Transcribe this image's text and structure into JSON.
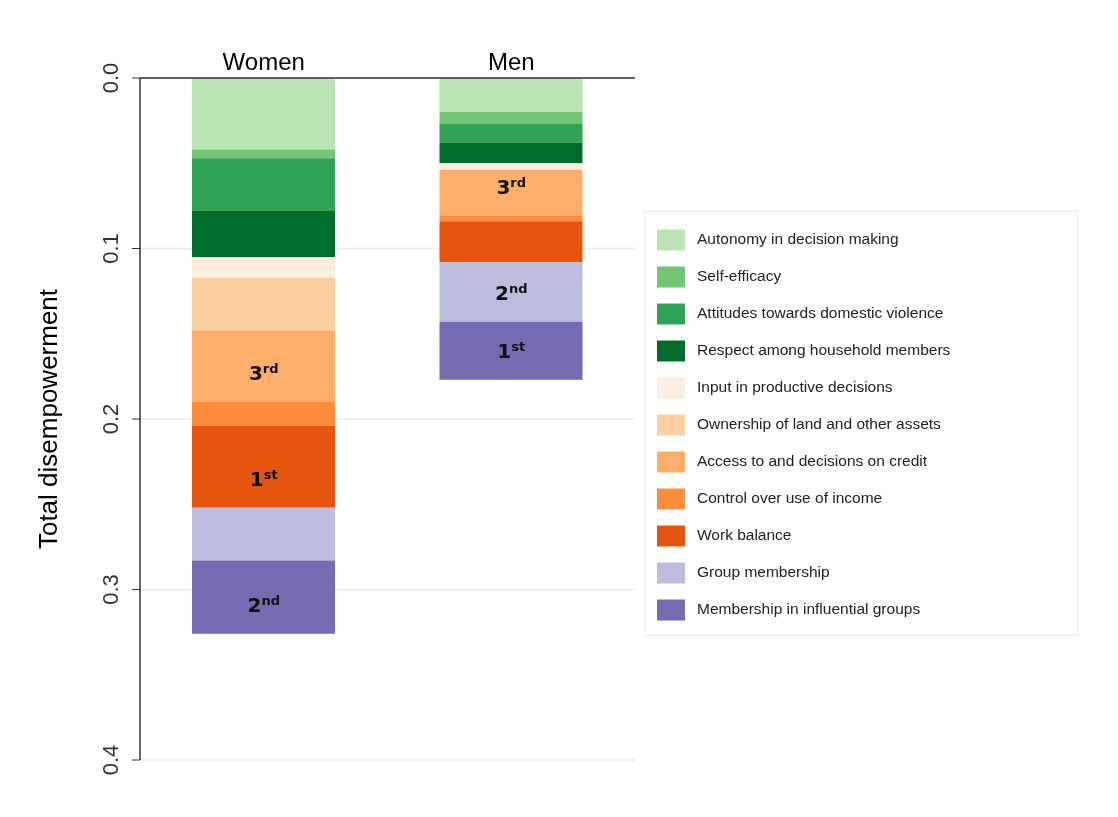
{
  "chart_data": {
    "type": "bar",
    "stacked": true,
    "ylabel": "Total disempowerment",
    "categories": [
      "Women",
      "Men"
    ],
    "series": [
      {
        "name": "Autonomy in decision making",
        "color": "#bae4b3",
        "values": [
          0.042,
          0.02
        ]
      },
      {
        "name": "Self-efficacy",
        "color": "#74c476",
        "values": [
          0.005,
          0.007
        ]
      },
      {
        "name": "Attitudes towards domestic violence",
        "color": "#31a354",
        "values": [
          0.031,
          0.011
        ]
      },
      {
        "name": "Respect among household members",
        "color": "#006d2c",
        "values": [
          0.027,
          0.012
        ]
      },
      {
        "name": "Input in productive decisions",
        "color": "#feeddf",
        "values": [
          0.012,
          0.004
        ]
      },
      {
        "name": "Ownership of land and other assets",
        "color": "#fdd0a2",
        "values": [
          0.031,
          0
        ]
      },
      {
        "name": "Access to and decisions on credit",
        "color": "#fdae6b",
        "values": [
          0.042,
          0.027
        ]
      },
      {
        "name": "Control over use of income",
        "color": "#fd8d3c",
        "values": [
          0.014,
          0.003
        ]
      },
      {
        "name": "Work balance",
        "color": "#e6550d",
        "values": [
          0.048,
          0.024
        ]
      },
      {
        "name": "Group membership",
        "color": "#bcbddc",
        "values": [
          0.031,
          0.035
        ]
      },
      {
        "name": "Membership in influential groups",
        "color": "#756bb1",
        "values": [
          0.043,
          0.034
        ]
      }
    ],
    "ylim": [
      0.4,
      0
    ],
    "yticks": [
      {
        "value": 0,
        "label": "0.0"
      },
      0.1,
      0.2,
      0.3,
      0.4
    ],
    "grid": "y",
    "legend": "right",
    "annotations": [
      {
        "text": "3$^{rd}$",
        "x": "Women",
        "y": 0.19
      },
      {
        "text": "1$^{st}$",
        "x": "Women",
        "y": 0.252
      },
      {
        "text": "2$^{nd}$",
        "x": "Women",
        "y": 0.326
      },
      {
        "text": "3$^{rd}$",
        "x": "Men",
        "y": 0.081
      },
      {
        "text": "2$^{nd}$",
        "x": "Men",
        "y": 0.143
      },
      {
        "text": "1$^{st}$",
        "x": "Men",
        "y": 0.177
      }
    ]
  }
}
